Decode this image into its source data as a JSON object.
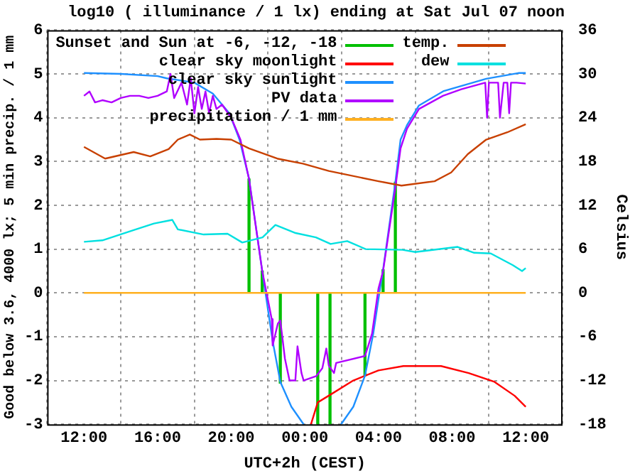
{
  "chart_data": {
    "type": "line",
    "title": "log10 ( illuminance / 1 lx) ending at Sat Jul 07 noon",
    "xlabel": "UTC+2h (CEST)",
    "ylabel": "Good below 3.6, 4000 lx; 5 min precip. / 1 mm",
    "y2label": "Celsius",
    "xlim": [
      "--07-06T12:00",
      "--07-07T12:00"
    ],
    "xticks": [
      {
        "value": "--07-06T12:00",
        "label": "12:00"
      },
      {
        "value": "--07-06T16:00",
        "label": "16:00"
      },
      {
        "value": "--07-06T20:00",
        "label": "20:00"
      },
      {
        "value": "--07-07T00:00",
        "label": "00:00"
      },
      {
        "value": "--07-07T04:00",
        "label": "04:00"
      },
      {
        "value": "--07-07T08:00",
        "label": "08:00"
      },
      {
        "value": "--07-07T12:00",
        "label": "12:00"
      }
    ],
    "ylim": [
      -3,
      6
    ],
    "yticks": [
      -3,
      -2,
      -1,
      0,
      1,
      2,
      3,
      4,
      5,
      6
    ],
    "y2lim": [
      -18,
      36
    ],
    "y2ticks": [
      -18,
      -12,
      -6,
      0,
      6,
      12,
      18,
      24,
      30,
      36
    ],
    "grid": true,
    "legend": "top left",
    "line_style": "solid",
    "marker": "none",
    "series": [
      {
        "name": "Sunset and Sun at -6, -12, -18",
        "type": "bar",
        "color": "#00c000",
        "x": [
          "--07-06T20:58",
          "--07-06T21:41",
          "--07-06T22:40",
          "--07-07T00:42",
          "--07-07T01:22",
          "--07-07T03:16",
          "--07-07T04:15",
          "--07-07T04:55"
        ],
        "values": [
          2.6,
          0.5,
          -2.06,
          -3,
          -3,
          -1.89,
          0.53,
          2.53
        ]
      },
      {
        "name": "clear sky moonlight",
        "color": "#ff0000",
        "x": [
          "--07-07T00:20",
          "--07-07T00:42",
          "--07-07T01:22",
          "--07-07T02:38",
          "--07-07T04:00",
          "--07-07T05:21",
          "--07-07T07:24",
          "--07-07T08:54",
          "--07-07T10:18",
          "--07-07T11:24",
          "--07-07T12:00"
        ],
        "values": [
          -3,
          -2.5,
          -2.33,
          -2.0,
          -1.77,
          -1.67,
          -1.67,
          -1.83,
          -2.03,
          -2.35,
          -2.6
        ]
      },
      {
        "name": "clear sky sunlight",
        "color": "#1e90ff",
        "x": [
          "--07-06T12:00",
          "--07-06T14:00",
          "--07-06T16:00",
          "--07-06T16:30",
          "--07-06T18:00",
          "--07-06T19:00",
          "--07-06T19:54",
          "--07-06T20:27",
          "--07-06T20:58",
          "--07-06T21:41",
          "--07-06T22:15",
          "--07-06T22:40",
          "--07-06T23:16",
          "--07-06T23:56",
          "--07-07T01:00",
          "--07-07T01:58",
          "--07-07T02:38",
          "--07-07T03:16",
          "--07-07T03:43",
          "--07-07T04:03",
          "--07-07T04:15",
          "--07-07T04:55",
          "--07-07T05:12",
          "--07-07T05:33",
          "--07-07T06:12",
          "--07-07T07:33",
          "--07-07T09:51",
          "--07-07T11:36",
          "--07-07T12:00"
        ],
        "values": [
          5.02,
          5.0,
          4.95,
          4.9,
          4.8,
          4.55,
          4.1,
          3.5,
          2.61,
          0.5,
          -1.1,
          -2.03,
          -2.6,
          -3,
          null,
          -3,
          -2.6,
          -1.89,
          -0.93,
          0,
          0.53,
          2.53,
          3.5,
          3.83,
          4.28,
          4.61,
          4.89,
          5.02,
          5.02
        ]
      },
      {
        "name": "PV data",
        "color": "#b000ff",
        "x": [
          "--07-06T12:00",
          "--07-06T12:18",
          "--07-06T12:36",
          "--07-06T13:00",
          "--07-06T13:30",
          "--07-06T14:00",
          "--07-06T14:30",
          "--07-06T15:00",
          "--07-06T15:30",
          "--07-06T16:00",
          "--07-06T16:30",
          "--07-06T16:42",
          "--07-06T16:54",
          "--07-06T17:18",
          "--07-06T17:36",
          "--07-06T17:48",
          "--07-06T18:00",
          "--07-06T18:12",
          "--07-06T18:24",
          "--07-06T18:36",
          "--07-06T18:48",
          "--07-06T19:00",
          "--07-06T19:12",
          "--07-06T19:30",
          "--07-06T20:00",
          "--07-06T20:30",
          "--07-06T20:58",
          "--07-06T21:41",
          "--07-06T22:12",
          "--07-06T22:15",
          "--07-06T22:32",
          "--07-06T22:40",
          "--07-06T22:55",
          "--07-06T23:10",
          "--07-06T23:29",
          "--07-06T23:36",
          "--07-06T23:49",
          "--07-06T23:56",
          "--07-07T00:37",
          "--07-07T00:57",
          "--07-07T01:10",
          "--07-07T01:18",
          "--07-07T01:35",
          "--07-07T01:42",
          "--07-07T03:16",
          "--07-07T03:39",
          "--07-07T04:00",
          "--07-07T04:15",
          "--07-07T04:55",
          "--07-07T05:12",
          "--07-07T05:33",
          "--07-07T06:12",
          "--07-07T07:30",
          "--07-07T08:30",
          "--07-07T09:48",
          "--07-07T09:54",
          "--07-07T10:00",
          "--07-07T10:30",
          "--07-07T10:36",
          "--07-07T10:48",
          "--07-07T11:00",
          "--07-07T11:06",
          "--07-07T11:12",
          "--07-07T11:30",
          "--07-07T12:00"
        ],
        "values": [
          4.5,
          4.6,
          4.35,
          4.4,
          4.35,
          4.45,
          4.5,
          4.5,
          4.45,
          4.5,
          4.6,
          5.0,
          4.45,
          4.8,
          4.3,
          4.9,
          4.1,
          4.7,
          4.2,
          4.6,
          4.1,
          4.5,
          4.2,
          4.3,
          4.0,
          3.5,
          2.6,
          0.5,
          -0.6,
          -1.2,
          -0.7,
          -0.63,
          -1.5,
          -2.0,
          -2.0,
          -1.22,
          -1.83,
          -2.0,
          -1.9,
          -1.72,
          -1.27,
          -1.66,
          -1.83,
          -1.6,
          -1.44,
          -0.93,
          0.1,
          0.5,
          2.4,
          3.3,
          3.75,
          4.2,
          4.5,
          4.65,
          4.8,
          4.0,
          4.8,
          4.8,
          4.0,
          4.8,
          4.8,
          4.1,
          4.8,
          4.8,
          4.78
        ]
      },
      {
        "name": "precipitation / 1 mm",
        "color": "#ffb020",
        "x": [
          "--07-06T12:00",
          "--07-07T12:00"
        ],
        "values": [
          0,
          0
        ]
      },
      {
        "name": "temp.",
        "color": "#c84000",
        "axis": "y2",
        "x": [
          "--07-06T12:00",
          "--07-06T13:09",
          "--07-06T14:42",
          "--07-06T15:36",
          "--07-06T16:36",
          "--07-06T17:06",
          "--07-06T17:45",
          "--07-06T18:18",
          "--07-06T19:12",
          "--07-06T20:00",
          "--07-06T20:58",
          "--07-06T22:30",
          "--07-06T23:54",
          "--07-07T01:18",
          "--07-07T04:00",
          "--07-07T05:15",
          "--07-07T07:03",
          "--07-07T07:57",
          "--07-07T08:51",
          "--07-07T09:51",
          "--07-07T11:00",
          "--07-07T12:00"
        ],
        "values": [
          20.0,
          18.4,
          19.3,
          18.7,
          19.7,
          21.0,
          21.7,
          21.0,
          21.1,
          21.0,
          19.8,
          18.4,
          17.7,
          16.7,
          15.3,
          14.7,
          15.3,
          16.5,
          19.0,
          21.0,
          22.0,
          23.1
        ]
      },
      {
        "name": "dew",
        "color": "#00e0e0",
        "axis": "y2",
        "x": [
          "--07-06T12:00",
          "--07-06T13:00",
          "--07-06T14:42",
          "--07-06T15:48",
          "--07-06T16:48",
          "--07-06T17:06",
          "--07-06T18:30",
          "--07-06T19:48",
          "--07-06T20:36",
          "--07-06T21:42",
          "--07-06T22:24",
          "--07-06T23:30",
          "--07-07T00:36",
          "--07-07T01:24",
          "--07-07T02:18",
          "--07-07T03:18",
          "--07-07T05:18",
          "--07-07T06:00",
          "--07-07T08:18",
          "--07-07T09:12",
          "--07-07T10:06",
          "--07-07T11:18",
          "--07-07T11:48",
          "--07-07T12:00"
        ],
        "values": [
          7.0,
          7.2,
          8.6,
          9.5,
          10.0,
          8.7,
          8.0,
          8.1,
          6.9,
          7.6,
          9.3,
          8.2,
          7.6,
          6.7,
          7.1,
          6.0,
          5.9,
          5.6,
          6.3,
          5.5,
          5.4,
          3.8,
          3.0,
          3.4
        ]
      }
    ]
  }
}
